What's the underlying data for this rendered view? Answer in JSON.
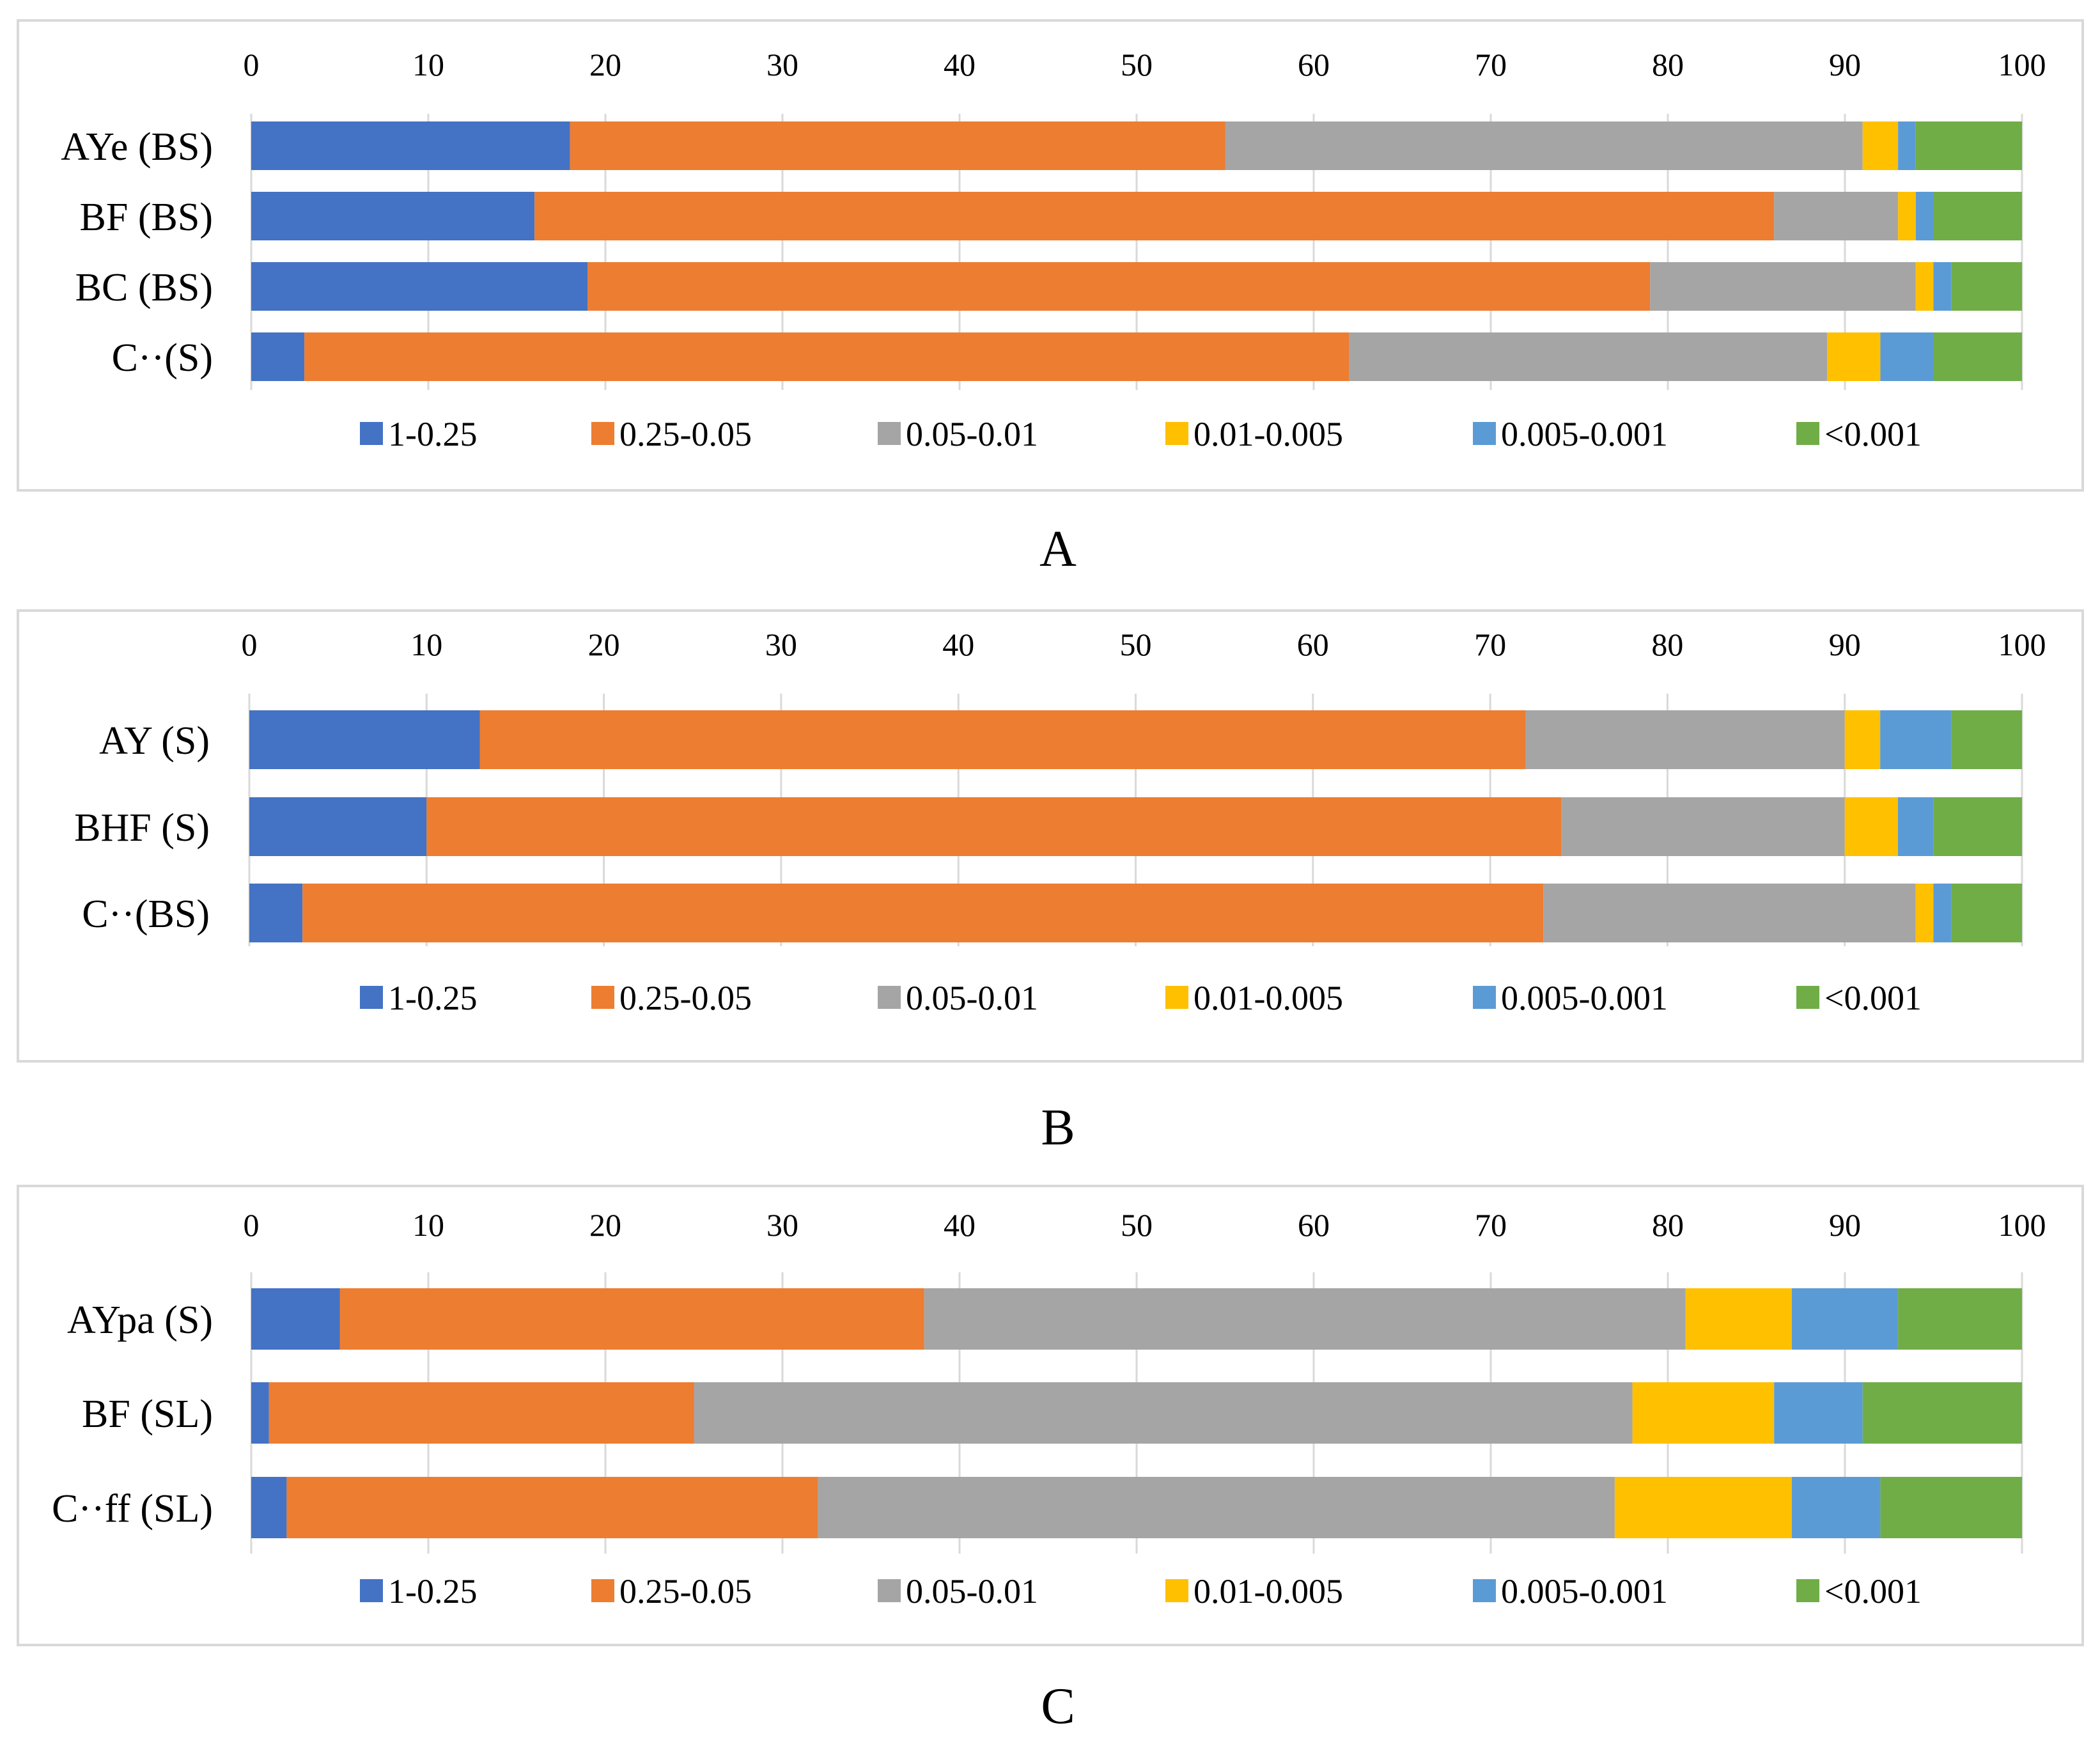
{
  "colors": {
    "series": [
      "#4472C4",
      "#ED7D31",
      "#A5A5A5",
      "#FFC000",
      "#5B9BD5",
      "#70AD47"
    ],
    "grid": "#D9D9D9",
    "frame": "#D9D9D9"
  },
  "chart_data": [
    {
      "type": "bar",
      "orientation": "horizontal-stacked",
      "panel_label": "A",
      "xlim": [
        0,
        100
      ],
      "x_ticks": [
        "0",
        "10",
        "20",
        "30",
        "40",
        "50",
        "60",
        "70",
        "80",
        "90",
        "100"
      ],
      "x_axis_position": "top",
      "grid": true,
      "legend_position": "bottom",
      "categories": [
        "AYe (BS)",
        "BF (BS)",
        "BC (BS)",
        "C··(S)"
      ],
      "series": [
        {
          "name": "1-0.25",
          "values": [
            18,
            16,
            19,
            3
          ]
        },
        {
          "name": "0.25-0.05",
          "values": [
            37,
            70,
            60,
            59
          ]
        },
        {
          "name": "0.05-0.01",
          "values": [
            36,
            7,
            15,
            27
          ]
        },
        {
          "name": "0.01-0.005",
          "values": [
            2,
            1,
            1,
            3
          ]
        },
        {
          "name": "0.005-0.001",
          "values": [
            1,
            1,
            1,
            3
          ]
        },
        {
          "name": "<0.001",
          "values": [
            6,
            5,
            4,
            5
          ]
        }
      ]
    },
    {
      "type": "bar",
      "orientation": "horizontal-stacked",
      "panel_label": "B",
      "xlim": [
        0,
        100
      ],
      "x_ticks": [
        "0",
        "10",
        "20",
        "30",
        "40",
        "50",
        "60",
        "70",
        "80",
        "90",
        "100"
      ],
      "x_axis_position": "top",
      "grid": true,
      "legend_position": "bottom",
      "categories": [
        "AY (S)",
        "BHF (S)",
        "C··(BS)"
      ],
      "series": [
        {
          "name": "1-0.25",
          "values": [
            13,
            10,
            3
          ]
        },
        {
          "name": "0.25-0.05",
          "values": [
            59,
            64,
            70
          ]
        },
        {
          "name": "0.05-0.01",
          "values": [
            18,
            16,
            21
          ]
        },
        {
          "name": "0.01-0.005",
          "values": [
            2,
            3,
            1
          ]
        },
        {
          "name": "0.005-0.001",
          "values": [
            4,
            2,
            1
          ]
        },
        {
          "name": "<0.001",
          "values": [
            4,
            5,
            4
          ]
        }
      ]
    },
    {
      "type": "bar",
      "orientation": "horizontal-stacked",
      "panel_label": "C",
      "xlim": [
        0,
        100
      ],
      "x_ticks": [
        "0",
        "10",
        "20",
        "30",
        "40",
        "50",
        "60",
        "70",
        "80",
        "90",
        "100"
      ],
      "x_axis_position": "top",
      "grid": true,
      "legend_position": "bottom",
      "categories": [
        "AYpa (S)",
        "BF (SL)",
        "C··ff (SL)"
      ],
      "series": [
        {
          "name": "1-0.25",
          "values": [
            5,
            1,
            2
          ]
        },
        {
          "name": "0.25-0.05",
          "values": [
            33,
            24,
            30
          ]
        },
        {
          "name": "0.05-0.01",
          "values": [
            43,
            53,
            45
          ]
        },
        {
          "name": "0.01-0.005",
          "values": [
            6,
            8,
            10
          ]
        },
        {
          "name": "0.005-0.001",
          "values": [
            6,
            5,
            5
          ]
        },
        {
          "name": "<0.001",
          "values": [
            7,
            9,
            8
          ]
        }
      ]
    }
  ]
}
